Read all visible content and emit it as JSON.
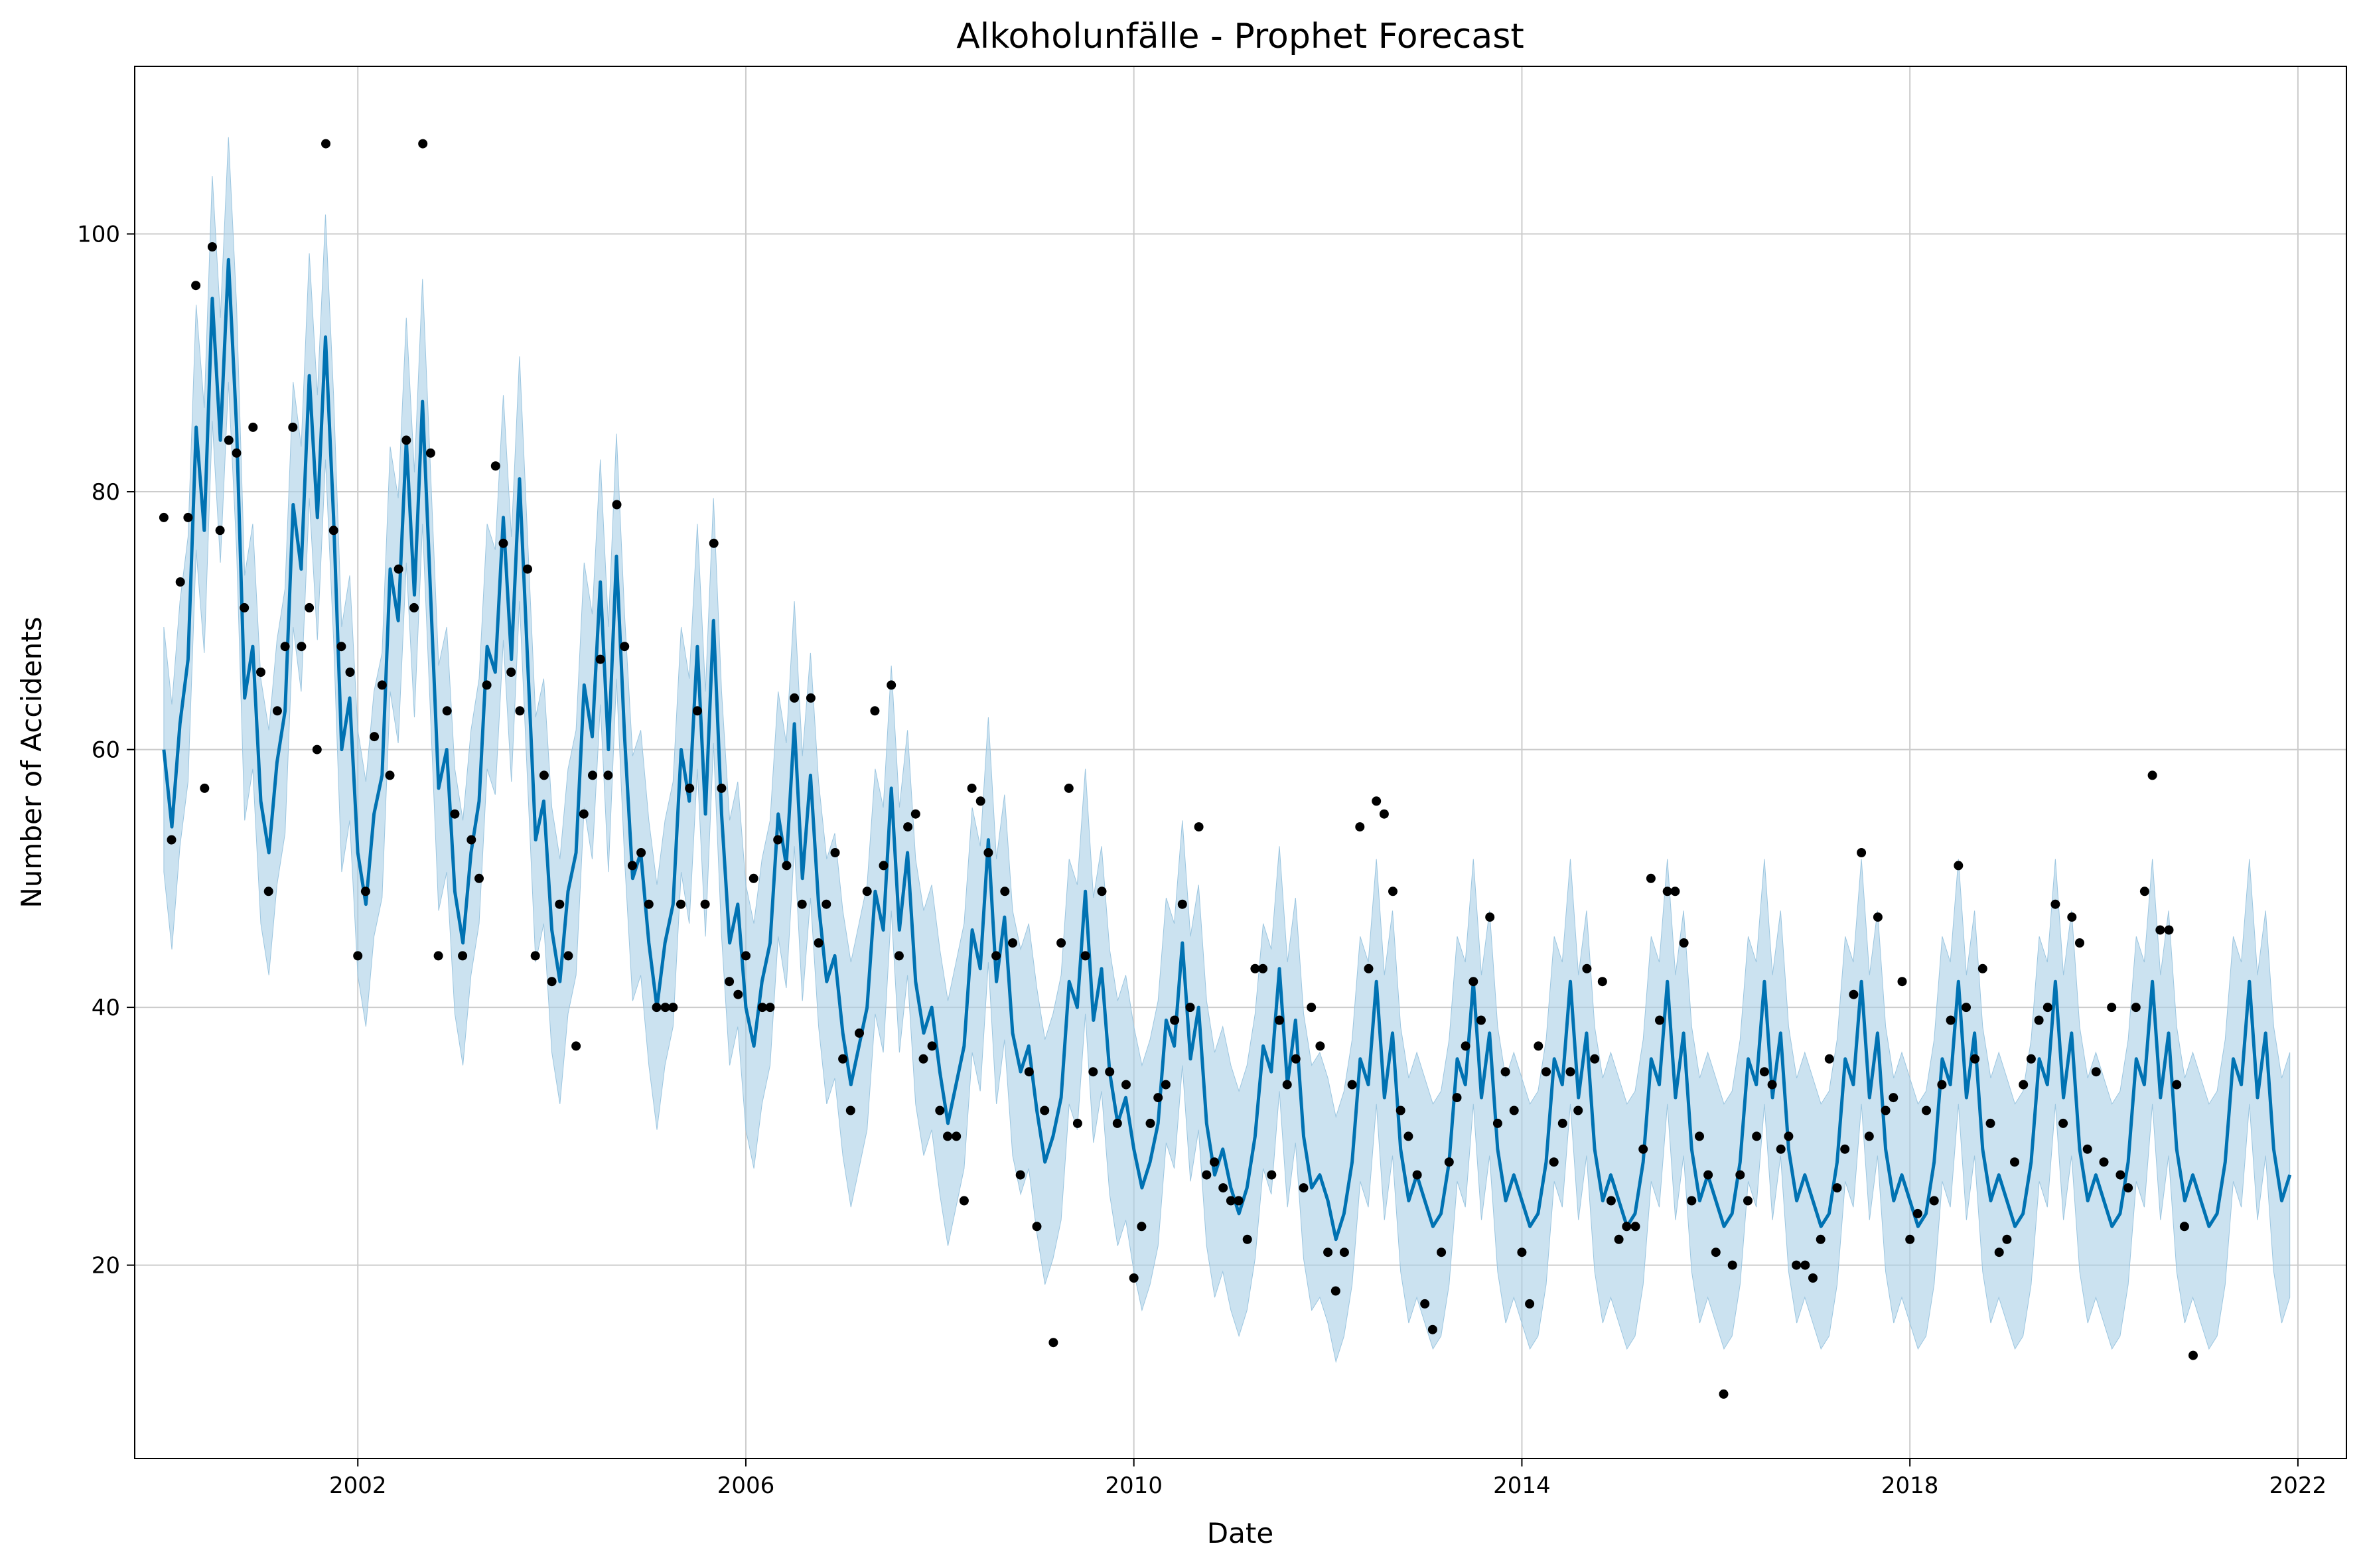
{
  "chart_data": {
    "type": "line",
    "title": "Alkoholunfälle - Prophet Forecast",
    "xlabel": "Date",
    "ylabel": "Number of Accidents",
    "xlim": [
      1999.7,
      2022.5
    ],
    "ylim": [
      5,
      113
    ],
    "x_ticks": [
      2002,
      2006,
      2010,
      2014,
      2018,
      2022
    ],
    "y_ticks": [
      20,
      40,
      60,
      80,
      100
    ],
    "grid": true,
    "colors": {
      "forecast": "#0072b2",
      "interval": "#a9cfe6",
      "actual": "#000000",
      "grid": "#cccccc"
    },
    "forecast_start": 2000.0,
    "forecast_values": [
      60,
      54,
      62,
      67,
      85,
      77,
      95,
      84,
      98,
      85,
      64,
      68,
      56,
      52,
      59,
      63,
      79,
      74,
      89,
      78,
      92,
      78,
      60,
      64,
      52,
      48,
      55,
      58,
      74,
      70,
      84,
      72,
      87,
      72,
      57,
      60,
      49,
      45,
      52,
      56,
      68,
      66,
      78,
      67,
      81,
      67,
      53,
      56,
      46,
      42,
      49,
      52,
      65,
      61,
      73,
      60,
      75,
      61,
      50,
      52,
      45,
      40,
      45,
      48,
      60,
      56,
      68,
      55,
      70,
      55,
      45,
      48,
      40,
      37,
      42,
      45,
      55,
      51,
      62,
      50,
      58,
      48,
      42,
      44,
      38,
      34,
      37,
      40,
      49,
      46,
      57,
      46,
      52,
      42,
      38,
      40,
      35,
      31,
      34,
      37,
      46,
      43,
      53,
      42,
      47,
      38,
      35,
      37,
      32,
      28,
      30,
      33,
      42,
      40,
      49,
      39,
      43,
      35,
      31,
      33,
      29,
      26,
      28,
      31,
      39,
      37,
      45,
      36,
      40,
      31,
      27,
      29,
      26,
      24,
      26,
      30,
      37,
      35,
      43,
      34,
      39,
      30,
      26,
      27,
      25,
      22,
      24,
      28,
      36,
      34,
      42,
      33,
      38,
      29,
      25,
      27,
      25,
      23,
      24,
      28,
      36,
      34,
      42,
      33,
      38,
      29,
      25,
      27,
      25,
      23,
      24,
      28,
      36,
      34,
      42,
      33,
      38,
      29,
      25,
      27,
      25,
      23,
      24,
      28,
      36,
      34,
      42,
      33,
      38,
      29,
      25,
      27,
      25,
      23,
      24,
      28,
      36,
      34,
      42,
      33,
      38,
      29,
      25,
      27,
      25,
      23,
      24,
      28,
      36,
      34,
      42,
      33,
      38,
      29,
      25,
      27,
      25,
      23,
      24,
      28,
      36,
      34,
      42,
      33,
      38,
      29,
      25,
      27,
      25,
      23,
      24,
      28,
      36,
      34,
      42,
      33,
      38,
      29,
      25,
      27,
      25,
      23,
      24,
      28,
      36,
      34,
      42,
      33,
      38,
      29,
      25,
      27,
      25,
      23,
      24,
      28,
      36,
      34,
      42,
      33,
      38,
      29,
      25,
      27
    ],
    "interval_half_width": 9.5,
    "actual_points": [
      {
        "x": 2000.0,
        "y": 78
      },
      {
        "x": 2000.08,
        "y": 53
      },
      {
        "x": 2000.17,
        "y": 73
      },
      {
        "x": 2000.25,
        "y": 78
      },
      {
        "x": 2000.33,
        "y": 96
      },
      {
        "x": 2000.42,
        "y": 57
      },
      {
        "x": 2000.5,
        "y": 99
      },
      {
        "x": 2000.58,
        "y": 77
      },
      {
        "x": 2000.67,
        "y": 84
      },
      {
        "x": 2000.75,
        "y": 83
      },
      {
        "x": 2000.83,
        "y": 71
      },
      {
        "x": 2000.92,
        "y": 85
      },
      {
        "x": 2001.0,
        "y": 66
      },
      {
        "x": 2001.08,
        "y": 49
      },
      {
        "x": 2001.17,
        "y": 63
      },
      {
        "x": 2001.25,
        "y": 68
      },
      {
        "x": 2001.33,
        "y": 85
      },
      {
        "x": 2001.42,
        "y": 68
      },
      {
        "x": 2001.5,
        "y": 71
      },
      {
        "x": 2001.58,
        "y": 60
      },
      {
        "x": 2001.67,
        "y": 107
      },
      {
        "x": 2001.75,
        "y": 77
      },
      {
        "x": 2001.83,
        "y": 68
      },
      {
        "x": 2001.92,
        "y": 66
      },
      {
        "x": 2002.0,
        "y": 44
      },
      {
        "x": 2002.08,
        "y": 49
      },
      {
        "x": 2002.17,
        "y": 61
      },
      {
        "x": 2002.25,
        "y": 65
      },
      {
        "x": 2002.33,
        "y": 58
      },
      {
        "x": 2002.42,
        "y": 74
      },
      {
        "x": 2002.5,
        "y": 84
      },
      {
        "x": 2002.58,
        "y": 71
      },
      {
        "x": 2002.67,
        "y": 107
      },
      {
        "x": 2002.75,
        "y": 83
      },
      {
        "x": 2002.83,
        "y": 44
      },
      {
        "x": 2002.92,
        "y": 63
      },
      {
        "x": 2003.0,
        "y": 55
      },
      {
        "x": 2003.08,
        "y": 44
      },
      {
        "x": 2003.17,
        "y": 53
      },
      {
        "x": 2003.25,
        "y": 50
      },
      {
        "x": 2003.33,
        "y": 65
      },
      {
        "x": 2003.42,
        "y": 82
      },
      {
        "x": 2003.5,
        "y": 76
      },
      {
        "x": 2003.58,
        "y": 66
      },
      {
        "x": 2003.67,
        "y": 63
      },
      {
        "x": 2003.75,
        "y": 74
      },
      {
        "x": 2003.83,
        "y": 44
      },
      {
        "x": 2003.92,
        "y": 58
      },
      {
        "x": 2004.0,
        "y": 42
      },
      {
        "x": 2004.08,
        "y": 48
      },
      {
        "x": 2004.17,
        "y": 44
      },
      {
        "x": 2004.25,
        "y": 37
      },
      {
        "x": 2004.33,
        "y": 55
      },
      {
        "x": 2004.42,
        "y": 58
      },
      {
        "x": 2004.5,
        "y": 67
      },
      {
        "x": 2004.58,
        "y": 58
      },
      {
        "x": 2004.67,
        "y": 79
      },
      {
        "x": 2004.75,
        "y": 68
      },
      {
        "x": 2004.83,
        "y": 51
      },
      {
        "x": 2004.92,
        "y": 52
      },
      {
        "x": 2005.0,
        "y": 48
      },
      {
        "x": 2005.08,
        "y": 40
      },
      {
        "x": 2005.17,
        "y": 40
      },
      {
        "x": 2005.25,
        "y": 40
      },
      {
        "x": 2005.33,
        "y": 48
      },
      {
        "x": 2005.42,
        "y": 57
      },
      {
        "x": 2005.5,
        "y": 63
      },
      {
        "x": 2005.58,
        "y": 48
      },
      {
        "x": 2005.67,
        "y": 76
      },
      {
        "x": 2005.75,
        "y": 57
      },
      {
        "x": 2005.83,
        "y": 42
      },
      {
        "x": 2005.92,
        "y": 41
      },
      {
        "x": 2006.0,
        "y": 44
      },
      {
        "x": 2006.08,
        "y": 50
      },
      {
        "x": 2006.17,
        "y": 40
      },
      {
        "x": 2006.25,
        "y": 40
      },
      {
        "x": 2006.33,
        "y": 53
      },
      {
        "x": 2006.42,
        "y": 51
      },
      {
        "x": 2006.5,
        "y": 64
      },
      {
        "x": 2006.58,
        "y": 48
      },
      {
        "x": 2006.67,
        "y": 64
      },
      {
        "x": 2006.75,
        "y": 45
      },
      {
        "x": 2006.83,
        "y": 48
      },
      {
        "x": 2006.92,
        "y": 52
      },
      {
        "x": 2007.0,
        "y": 36
      },
      {
        "x": 2007.08,
        "y": 32
      },
      {
        "x": 2007.17,
        "y": 38
      },
      {
        "x": 2007.25,
        "y": 49
      },
      {
        "x": 2007.33,
        "y": 63
      },
      {
        "x": 2007.42,
        "y": 51
      },
      {
        "x": 2007.5,
        "y": 65
      },
      {
        "x": 2007.58,
        "y": 44
      },
      {
        "x": 2007.67,
        "y": 54
      },
      {
        "x": 2007.75,
        "y": 55
      },
      {
        "x": 2007.83,
        "y": 36
      },
      {
        "x": 2007.92,
        "y": 37
      },
      {
        "x": 2008.0,
        "y": 32
      },
      {
        "x": 2008.08,
        "y": 30
      },
      {
        "x": 2008.17,
        "y": 30
      },
      {
        "x": 2008.25,
        "y": 25
      },
      {
        "x": 2008.33,
        "y": 57
      },
      {
        "x": 2008.42,
        "y": 56
      },
      {
        "x": 2008.5,
        "y": 52
      },
      {
        "x": 2008.58,
        "y": 44
      },
      {
        "x": 2008.67,
        "y": 49
      },
      {
        "x": 2008.75,
        "y": 45
      },
      {
        "x": 2008.83,
        "y": 27
      },
      {
        "x": 2008.92,
        "y": 35
      },
      {
        "x": 2009.0,
        "y": 23
      },
      {
        "x": 2009.08,
        "y": 32
      },
      {
        "x": 2009.17,
        "y": 14
      },
      {
        "x": 2009.25,
        "y": 45
      },
      {
        "x": 2009.33,
        "y": 57
      },
      {
        "x": 2009.42,
        "y": 31
      },
      {
        "x": 2009.5,
        "y": 44
      },
      {
        "x": 2009.58,
        "y": 35
      },
      {
        "x": 2009.67,
        "y": 49
      },
      {
        "x": 2009.75,
        "y": 35
      },
      {
        "x": 2009.83,
        "y": 31
      },
      {
        "x": 2009.92,
        "y": 34
      },
      {
        "x": 2010.0,
        "y": 19
      },
      {
        "x": 2010.08,
        "y": 23
      },
      {
        "x": 2010.17,
        "y": 31
      },
      {
        "x": 2010.25,
        "y": 33
      },
      {
        "x": 2010.33,
        "y": 34
      },
      {
        "x": 2010.42,
        "y": 39
      },
      {
        "x": 2010.5,
        "y": 48
      },
      {
        "x": 2010.58,
        "y": 40
      },
      {
        "x": 2010.67,
        "y": 54
      },
      {
        "x": 2010.75,
        "y": 27
      },
      {
        "x": 2010.83,
        "y": 28
      },
      {
        "x": 2010.92,
        "y": 26
      },
      {
        "x": 2011.0,
        "y": 25
      },
      {
        "x": 2011.08,
        "y": 25
      },
      {
        "x": 2011.17,
        "y": 22
      },
      {
        "x": 2011.25,
        "y": 43
      },
      {
        "x": 2011.33,
        "y": 43
      },
      {
        "x": 2011.42,
        "y": 27
      },
      {
        "x": 2011.5,
        "y": 39
      },
      {
        "x": 2011.58,
        "y": 34
      },
      {
        "x": 2011.67,
        "y": 36
      },
      {
        "x": 2011.75,
        "y": 26
      },
      {
        "x": 2011.83,
        "y": 40
      },
      {
        "x": 2011.92,
        "y": 37
      },
      {
        "x": 2012.0,
        "y": 21
      },
      {
        "x": 2012.08,
        "y": 18
      },
      {
        "x": 2012.17,
        "y": 21
      },
      {
        "x": 2012.25,
        "y": 34
      },
      {
        "x": 2012.33,
        "y": 54
      },
      {
        "x": 2012.42,
        "y": 43
      },
      {
        "x": 2012.5,
        "y": 56
      },
      {
        "x": 2012.58,
        "y": 55
      },
      {
        "x": 2012.67,
        "y": 49
      },
      {
        "x": 2012.75,
        "y": 32
      },
      {
        "x": 2012.83,
        "y": 30
      },
      {
        "x": 2012.92,
        "y": 27
      },
      {
        "x": 2013.0,
        "y": 17
      },
      {
        "x": 2013.08,
        "y": 15
      },
      {
        "x": 2013.17,
        "y": 21
      },
      {
        "x": 2013.25,
        "y": 28
      },
      {
        "x": 2013.33,
        "y": 33
      },
      {
        "x": 2013.42,
        "y": 37
      },
      {
        "x": 2013.5,
        "y": 42
      },
      {
        "x": 2013.58,
        "y": 39
      },
      {
        "x": 2013.67,
        "y": 47
      },
      {
        "x": 2013.75,
        "y": 31
      },
      {
        "x": 2013.83,
        "y": 35
      },
      {
        "x": 2013.92,
        "y": 32
      },
      {
        "x": 2014.0,
        "y": 21
      },
      {
        "x": 2014.08,
        "y": 17
      },
      {
        "x": 2014.17,
        "y": 37
      },
      {
        "x": 2014.25,
        "y": 35
      },
      {
        "x": 2014.33,
        "y": 28
      },
      {
        "x": 2014.42,
        "y": 31
      },
      {
        "x": 2014.5,
        "y": 35
      },
      {
        "x": 2014.58,
        "y": 32
      },
      {
        "x": 2014.67,
        "y": 43
      },
      {
        "x": 2014.75,
        "y": 36
      },
      {
        "x": 2014.83,
        "y": 42
      },
      {
        "x": 2014.92,
        "y": 25
      },
      {
        "x": 2015.0,
        "y": 22
      },
      {
        "x": 2015.08,
        "y": 23
      },
      {
        "x": 2015.17,
        "y": 23
      },
      {
        "x": 2015.25,
        "y": 29
      },
      {
        "x": 2015.33,
        "y": 50
      },
      {
        "x": 2015.42,
        "y": 39
      },
      {
        "x": 2015.5,
        "y": 49
      },
      {
        "x": 2015.58,
        "y": 49
      },
      {
        "x": 2015.67,
        "y": 45
      },
      {
        "x": 2015.75,
        "y": 25
      },
      {
        "x": 2015.83,
        "y": 30
      },
      {
        "x": 2015.92,
        "y": 27
      },
      {
        "x": 2016.0,
        "y": 21
      },
      {
        "x": 2016.08,
        "y": 10
      },
      {
        "x": 2016.17,
        "y": 20
      },
      {
        "x": 2016.25,
        "y": 27
      },
      {
        "x": 2016.33,
        "y": 25
      },
      {
        "x": 2016.42,
        "y": 30
      },
      {
        "x": 2016.5,
        "y": 35
      },
      {
        "x": 2016.58,
        "y": 34
      },
      {
        "x": 2016.67,
        "y": 29
      },
      {
        "x": 2016.75,
        "y": 30
      },
      {
        "x": 2016.83,
        "y": 20
      },
      {
        "x": 2016.92,
        "y": 20
      },
      {
        "x": 2017.0,
        "y": 19
      },
      {
        "x": 2017.08,
        "y": 22
      },
      {
        "x": 2017.17,
        "y": 36
      },
      {
        "x": 2017.25,
        "y": 26
      },
      {
        "x": 2017.33,
        "y": 29
      },
      {
        "x": 2017.42,
        "y": 41
      },
      {
        "x": 2017.5,
        "y": 52
      },
      {
        "x": 2017.58,
        "y": 30
      },
      {
        "x": 2017.67,
        "y": 47
      },
      {
        "x": 2017.75,
        "y": 32
      },
      {
        "x": 2017.83,
        "y": 33
      },
      {
        "x": 2017.92,
        "y": 42
      },
      {
        "x": 2018.0,
        "y": 22
      },
      {
        "x": 2018.08,
        "y": 24
      },
      {
        "x": 2018.17,
        "y": 32
      },
      {
        "x": 2018.25,
        "y": 25
      },
      {
        "x": 2018.33,
        "y": 34
      },
      {
        "x": 2018.42,
        "y": 39
      },
      {
        "x": 2018.5,
        "y": 51
      },
      {
        "x": 2018.58,
        "y": 40
      },
      {
        "x": 2018.67,
        "y": 36
      },
      {
        "x": 2018.75,
        "y": 43
      },
      {
        "x": 2018.83,
        "y": 31
      },
      {
        "x": 2018.92,
        "y": 21
      },
      {
        "x": 2019.0,
        "y": 22
      },
      {
        "x": 2019.08,
        "y": 28
      },
      {
        "x": 2019.17,
        "y": 34
      },
      {
        "x": 2019.25,
        "y": 36
      },
      {
        "x": 2019.33,
        "y": 39
      },
      {
        "x": 2019.42,
        "y": 40
      },
      {
        "x": 2019.5,
        "y": 48
      },
      {
        "x": 2019.58,
        "y": 31
      },
      {
        "x": 2019.67,
        "y": 47
      },
      {
        "x": 2019.75,
        "y": 45
      },
      {
        "x": 2019.83,
        "y": 29
      },
      {
        "x": 2019.92,
        "y": 35
      },
      {
        "x": 2020.0,
        "y": 28
      },
      {
        "x": 2020.08,
        "y": 40
      },
      {
        "x": 2020.17,
        "y": 27
      },
      {
        "x": 2020.25,
        "y": 26
      },
      {
        "x": 2020.33,
        "y": 40
      },
      {
        "x": 2020.42,
        "y": 49
      },
      {
        "x": 2020.5,
        "y": 58
      },
      {
        "x": 2020.58,
        "y": 46
      },
      {
        "x": 2020.67,
        "y": 46
      },
      {
        "x": 2020.75,
        "y": 34
      },
      {
        "x": 2020.83,
        "y": 23
      },
      {
        "x": 2020.92,
        "y": 13
      }
    ]
  }
}
